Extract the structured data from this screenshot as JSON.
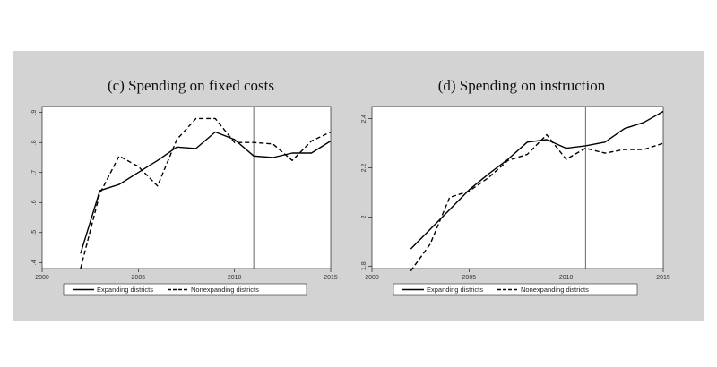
{
  "chart_data": [
    {
      "type": "line",
      "title": "(c) Spending on fixed costs",
      "xlabel": "",
      "ylabel": "",
      "xlim": [
        2000,
        2015
      ],
      "ylim": [
        0.38,
        0.92
      ],
      "x_ticks": [
        2000,
        2005,
        2010,
        2015
      ],
      "x_tick_labels": [
        "2000",
        "2005",
        "2010",
        "2015"
      ],
      "y_ticks": [
        0.4,
        0.5,
        0.6,
        0.7,
        0.8,
        0.9
      ],
      "y_tick_labels": [
        ".4",
        ".5",
        ".6",
        ".7",
        ".8",
        ".9"
      ],
      "vline": 2011,
      "grid": false,
      "legend_position": "bottom",
      "x": [
        2002,
        2003,
        2004,
        2005,
        2006,
        2007,
        2008,
        2009,
        2010,
        2011,
        2012,
        2013,
        2014,
        2015
      ],
      "series": [
        {
          "name": "Expanding districts",
          "style": "solid",
          "values": [
            0.43,
            0.64,
            0.66,
            0.7,
            0.74,
            0.785,
            0.78,
            0.835,
            0.81,
            0.755,
            0.75,
            0.765,
            0.765,
            0.805
          ]
        },
        {
          "name": "Nonexpanding districts",
          "style": "dashed",
          "values": [
            0.38,
            0.63,
            0.755,
            0.72,
            0.655,
            0.81,
            0.88,
            0.88,
            0.8,
            0.8,
            0.795,
            0.74,
            0.805,
            0.835
          ]
        }
      ]
    },
    {
      "type": "line",
      "title": "(d) Spending on instruction",
      "xlabel": "",
      "ylabel": "",
      "xlim": [
        2000,
        2015
      ],
      "ylim": [
        1.79,
        2.45
      ],
      "x_ticks": [
        2000,
        2005,
        2010,
        2015
      ],
      "x_tick_labels": [
        "2000",
        "2005",
        "2010",
        "2015"
      ],
      "y_ticks": [
        1.8,
        2.0,
        2.2,
        2.4
      ],
      "y_tick_labels": [
        "1.8",
        "2",
        "2.2",
        "2.4"
      ],
      "vline": 2011,
      "grid": false,
      "legend_position": "bottom",
      "x": [
        2002,
        2003,
        2004,
        2005,
        2006,
        2007,
        2008,
        2009,
        2010,
        2011,
        2012,
        2013,
        2014,
        2015
      ],
      "series": [
        {
          "name": "Expanding districts",
          "style": "solid",
          "values": [
            1.87,
            1.95,
            2.03,
            2.11,
            2.175,
            2.235,
            2.305,
            2.315,
            2.28,
            2.29,
            2.305,
            2.36,
            2.385,
            2.43
          ]
        },
        {
          "name": "Nonexpanding districts",
          "style": "dashed",
          "values": [
            1.78,
            1.89,
            2.08,
            2.105,
            2.16,
            2.23,
            2.255,
            2.335,
            2.235,
            2.28,
            2.26,
            2.275,
            2.275,
            2.3
          ]
        }
      ]
    }
  ],
  "colors": {
    "panel_background": "#d3d3d3",
    "plot_background": "#ffffff",
    "line": "#000000",
    "vline": "#555555"
  }
}
